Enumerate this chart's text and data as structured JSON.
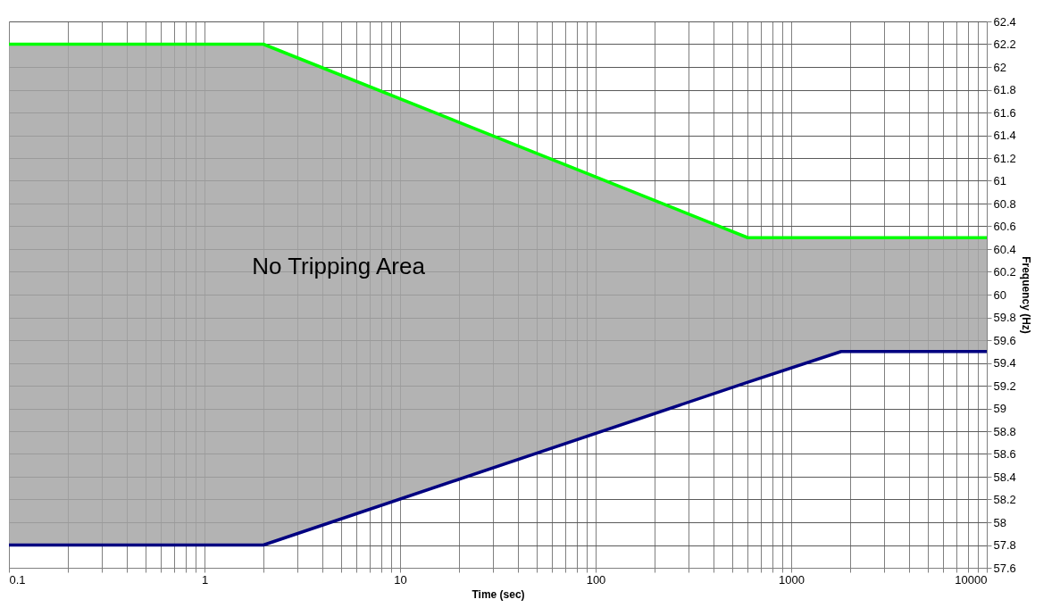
{
  "chart_data": {
    "type": "line",
    "xlabel": "Time (sec)",
    "ylabel": "Frequency (Hz)",
    "log": "x",
    "grid": true,
    "marker": "none",
    "line_style": "solid",
    "xlim": [
      0.1,
      10000
    ],
    "xticks": [
      0.1,
      1,
      10,
      100,
      1000,
      10000
    ],
    "ylim": [
      57.6,
      62.4
    ],
    "yticks": [
      57.6,
      57.8,
      58,
      58.2,
      58.4,
      58.6,
      58.8,
      59,
      59.2,
      59.4,
      59.6,
      59.8,
      60,
      60.2,
      60.4,
      60.6,
      60.8,
      61,
      61.2,
      61.4,
      61.6,
      61.8,
      62,
      62.2,
      62.4
    ],
    "series": [
      {
        "color": "#00ff00",
        "x": [
          0.1,
          2,
          600,
          1800,
          10000
        ],
        "values": [
          62.2,
          62.2,
          60.5,
          60.5,
          60.5
        ],
        "lower": [
          57.8,
          57.8,
          59.23,
          59.5,
          59.5
        ],
        "upper": [
          62.2,
          62.2,
          60.5,
          60.5,
          60.5
        ]
      },
      {
        "color": "#000080",
        "x": [
          0.1,
          2,
          600,
          1800,
          10000
        ],
        "values": [
          57.8,
          57.8,
          59.23,
          59.5,
          59.5
        ]
      }
    ],
    "annotations": [
      "No Tripping Area"
    ]
  }
}
